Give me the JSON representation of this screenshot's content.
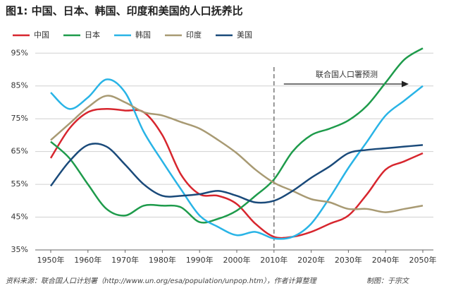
{
  "chart_data": {
    "type": "line",
    "title": "图1: 中国、日本、韩国、印度和美国的人口抚养比",
    "source": "资料来源：联合国人口计划署（http://www.un.org/esa/population/unpop.htm），作者计算整理",
    "credit": "制图：于宗文",
    "annotation": {
      "text": "联合国人口署预测",
      "x": 2010
    },
    "x": [
      1950,
      1955,
      1960,
      1965,
      1970,
      1975,
      1980,
      1985,
      1990,
      1995,
      2000,
      2005,
      2010,
      2015,
      2020,
      2025,
      2030,
      2035,
      2040,
      2045,
      2050
    ],
    "series": [
      {
        "name": "中国",
        "color": "#d7262e",
        "values": [
          63,
          72,
          77,
          78,
          77.5,
          77,
          70,
          58,
          52,
          51.5,
          49,
          43,
          39,
          39,
          40.5,
          43,
          45.5,
          52,
          59.5,
          62,
          64.5
        ]
      },
      {
        "name": "日本",
        "color": "#1e9b4b",
        "values": [
          68,
          63,
          55,
          47.5,
          45.5,
          48.5,
          48.5,
          48,
          43.5,
          44.5,
          47,
          51.5,
          56.5,
          65,
          70,
          72,
          74.5,
          79,
          86,
          93,
          96.5
        ]
      },
      {
        "name": "韩国",
        "color": "#29b4e6",
        "values": [
          83,
          78,
          81.5,
          87,
          83,
          71,
          62,
          53.5,
          45.5,
          42,
          39.5,
          40.5,
          38.5,
          39,
          43,
          51,
          60,
          68,
          76,
          80.5,
          85
        ]
      },
      {
        "name": "印度",
        "color": "#a89a73",
        "values": [
          68.5,
          73.5,
          78.5,
          82,
          80,
          77,
          76,
          74,
          72,
          68.5,
          64.5,
          59.5,
          55.5,
          53,
          50.5,
          49.5,
          47.5,
          47.5,
          46.5,
          47.5,
          48.5
        ]
      },
      {
        "name": "美国",
        "color": "#1a4a7a",
        "values": [
          54.5,
          62,
          67,
          66.5,
          61,
          55,
          51.5,
          51.5,
          52,
          53,
          51.5,
          49.5,
          50,
          53,
          57,
          60.5,
          64.5,
          65.5,
          66,
          66.5,
          67
        ]
      }
    ],
    "xlim": [
      1950,
      2050
    ],
    "xticks": [
      {
        "value": 1950,
        "label": "1950年"
      },
      {
        "value": 1960,
        "label": "1960年"
      },
      {
        "value": 1970,
        "label": "1970年"
      },
      {
        "value": 1980,
        "label": "1980年"
      },
      {
        "value": 1990,
        "label": "1990年"
      },
      {
        "value": 2000,
        "label": "2000年"
      },
      {
        "value": 2010,
        "label": "2010年"
      },
      {
        "value": 2020,
        "label": "2020年"
      },
      {
        "value": 2030,
        "label": "2030年"
      },
      {
        "value": 2040,
        "label": "2040年"
      },
      {
        "value": 2050,
        "label": "2050年"
      }
    ],
    "ylim": [
      35,
      97
    ],
    "yticks": [
      {
        "value": 35,
        "label": "35%"
      },
      {
        "value": 45,
        "label": "45%"
      },
      {
        "value": 55,
        "label": "55%"
      },
      {
        "value": 65,
        "label": "65%"
      },
      {
        "value": 75,
        "label": "75%"
      },
      {
        "value": 85,
        "label": "85%"
      },
      {
        "value": 95,
        "label": "95%"
      }
    ],
    "grid": true
  }
}
